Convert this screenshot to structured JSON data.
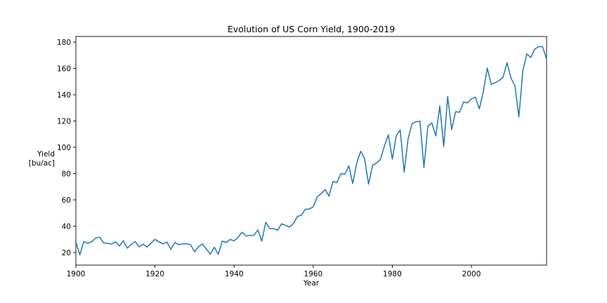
{
  "chart_data": {
    "type": "line",
    "title": "Evolution of US Corn Yield, 1900-2019",
    "xlabel": "Year",
    "ylabel_lines": [
      "Yield",
      "[bu/ac]"
    ],
    "xlim": [
      1900,
      2019
    ],
    "ylim": [
      10.4,
      184.3
    ],
    "xticks": [
      1900,
      1920,
      1940,
      1960,
      1980,
      2000
    ],
    "xtick_labels": [
      "1900",
      "1920",
      "1940",
      "1960",
      "1980",
      "2000"
    ],
    "yticks": [
      20,
      40,
      60,
      80,
      100,
      120,
      140,
      160,
      180
    ],
    "ytick_labels": [
      "20",
      "40",
      "60",
      "80",
      "100",
      "120",
      "140",
      "160",
      "180"
    ],
    "grid": false,
    "line_color": "#1f77b4",
    "series": [
      {
        "name": "Yield",
        "x": [
          1900,
          1901,
          1902,
          1903,
          1904,
          1905,
          1906,
          1907,
          1908,
          1909,
          1910,
          1911,
          1912,
          1913,
          1914,
          1915,
          1916,
          1917,
          1918,
          1919,
          1920,
          1921,
          1922,
          1923,
          1924,
          1925,
          1926,
          1927,
          1928,
          1929,
          1930,
          1931,
          1932,
          1933,
          1934,
          1935,
          1936,
          1937,
          1938,
          1939,
          1940,
          1941,
          1942,
          1943,
          1944,
          1945,
          1946,
          1947,
          1948,
          1949,
          1950,
          1951,
          1952,
          1953,
          1954,
          1955,
          1956,
          1957,
          1958,
          1959,
          1960,
          1961,
          1962,
          1963,
          1964,
          1965,
          1966,
          1967,
          1968,
          1969,
          1970,
          1971,
          1972,
          1973,
          1974,
          1975,
          1976,
          1977,
          1978,
          1979,
          1980,
          1981,
          1982,
          1983,
          1984,
          1985,
          1986,
          1987,
          1988,
          1989,
          1990,
          1991,
          1992,
          1993,
          1994,
          1995,
          1996,
          1997,
          1998,
          1999,
          2000,
          2001,
          2002,
          2003,
          2004,
          2005,
          2006,
          2007,
          2008,
          2009,
          2010,
          2011,
          2012,
          2013,
          2014,
          2015,
          2016,
          2017,
          2018,
          2019
        ],
        "values": [
          28.1,
          18.2,
          28.4,
          27.0,
          28.2,
          30.9,
          31.7,
          27.3,
          27.0,
          26.4,
          28.2,
          24.9,
          29.0,
          23.3,
          26.2,
          28.3,
          24.3,
          26.3,
          24.2,
          27.1,
          30.0,
          28.1,
          26.5,
          28.0,
          22.5,
          27.6,
          25.9,
          26.6,
          26.6,
          25.9,
          20.5,
          24.5,
          26.5,
          22.6,
          18.7,
          24.0,
          18.6,
          28.7,
          27.6,
          29.9,
          28.9,
          31.5,
          35.4,
          32.6,
          33.0,
          33.1,
          37.2,
          28.6,
          43.0,
          38.2,
          38.2,
          36.9,
          41.8,
          40.7,
          39.4,
          42.0,
          47.4,
          48.3,
          52.8,
          53.1,
          54.7,
          62.4,
          64.7,
          67.9,
          62.9,
          74.1,
          73.1,
          80.1,
          79.5,
          85.9,
          72.4,
          88.1,
          97.0,
          91.3,
          71.9,
          86.4,
          88.0,
          90.8,
          101.0,
          109.5,
          91.0,
          108.9,
          113.2,
          81.1,
          106.7,
          118.0,
          119.4,
          119.8,
          84.6,
          116.3,
          118.5,
          108.6,
          131.5,
          100.7,
          138.6,
          113.5,
          127.1,
          126.7,
          134.4,
          133.8,
          136.9,
          138.2,
          129.3,
          142.2,
          160.3,
          147.9,
          149.1,
          150.7,
          153.3,
          164.4,
          152.6,
          146.8,
          123.1,
          158.1,
          171.0,
          168.4,
          174.6,
          176.6,
          176.4,
          167.0
        ]
      }
    ]
  }
}
